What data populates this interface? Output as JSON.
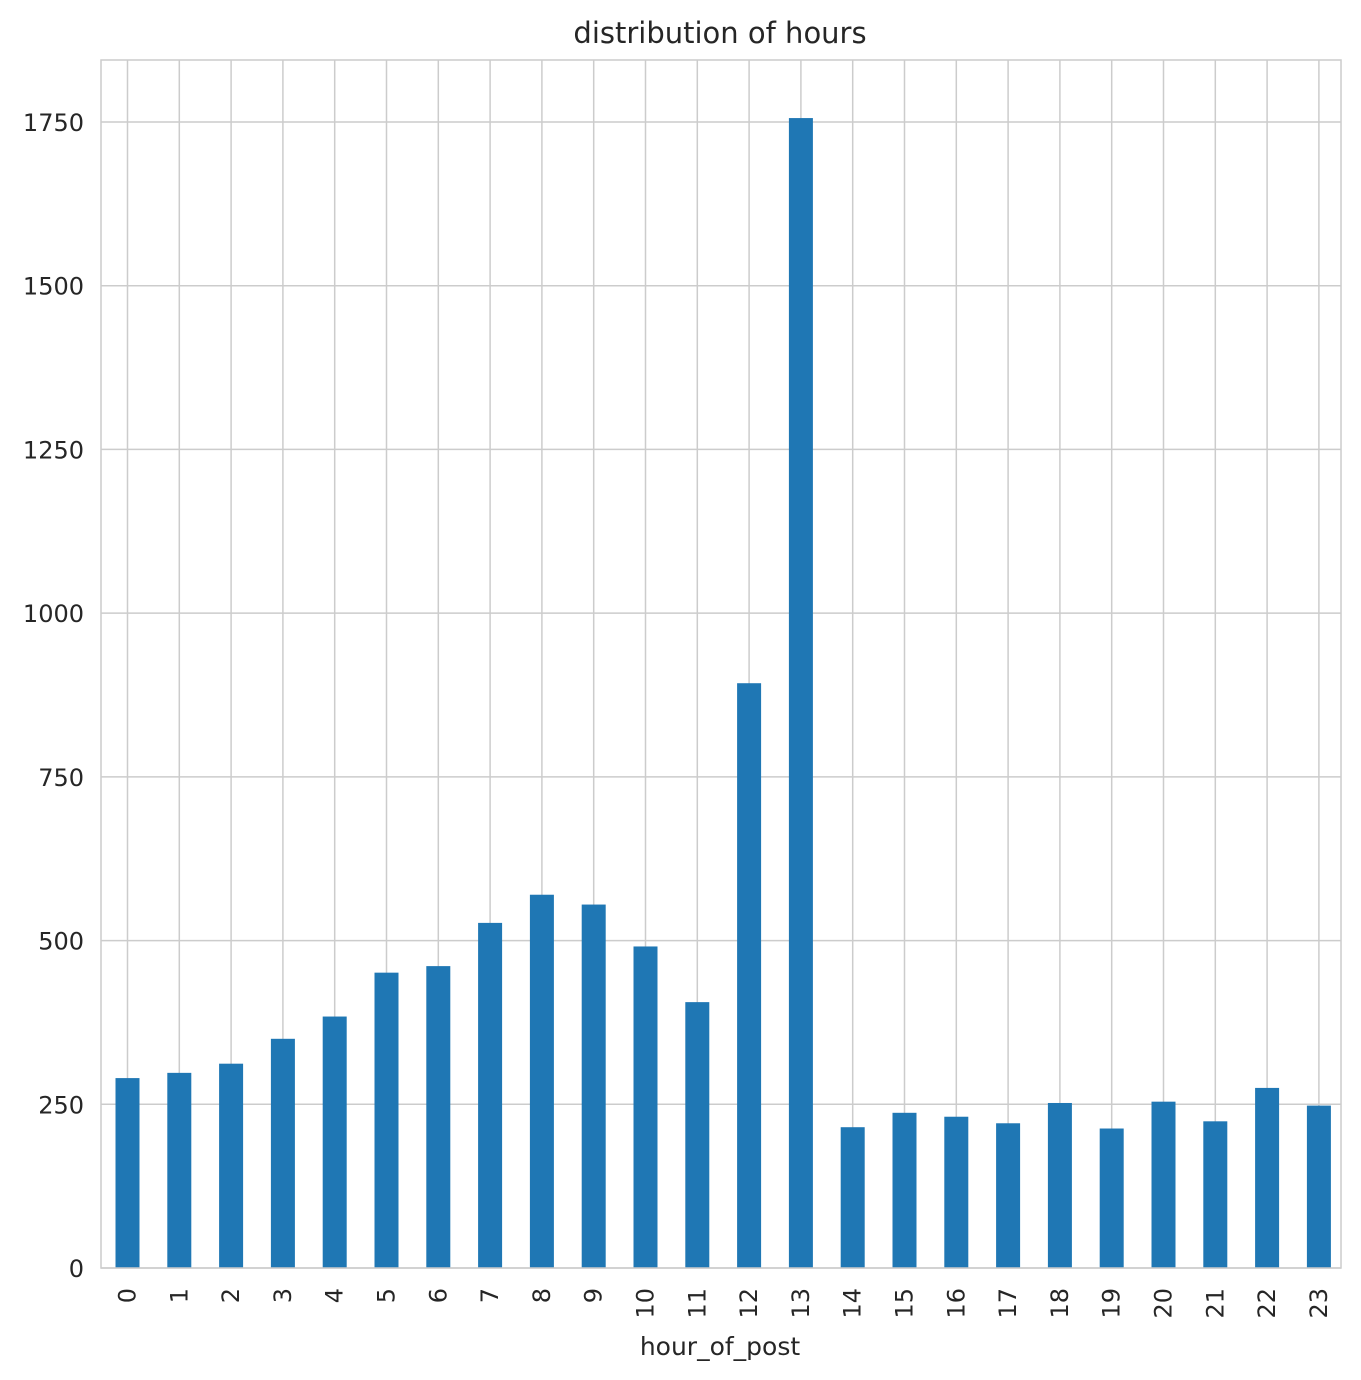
{
  "chart_data": {
    "type": "bar",
    "title": "distribution of hours",
    "xlabel": "hour_of_post",
    "ylabel": "",
    "categories": [
      "0",
      "1",
      "2",
      "3",
      "4",
      "5",
      "6",
      "7",
      "8",
      "9",
      "10",
      "11",
      "12",
      "13",
      "14",
      "15",
      "16",
      "17",
      "18",
      "19",
      "20",
      "21",
      "22",
      "23"
    ],
    "values": [
      290,
      298,
      312,
      350,
      384,
      451,
      461,
      527,
      570,
      555,
      491,
      406,
      893,
      1756,
      215,
      237,
      231,
      221,
      252,
      213,
      254,
      224,
      275,
      248
    ],
    "ylim": [
      0,
      1840
    ],
    "yticks": [
      0,
      250,
      500,
      750,
      1000,
      1250,
      1500,
      1750
    ],
    "grid": true,
    "legend": "none",
    "bar_color": "#1f77b4",
    "grid_color": "#cccccc",
    "axes_edge_color": "#cccccc"
  }
}
